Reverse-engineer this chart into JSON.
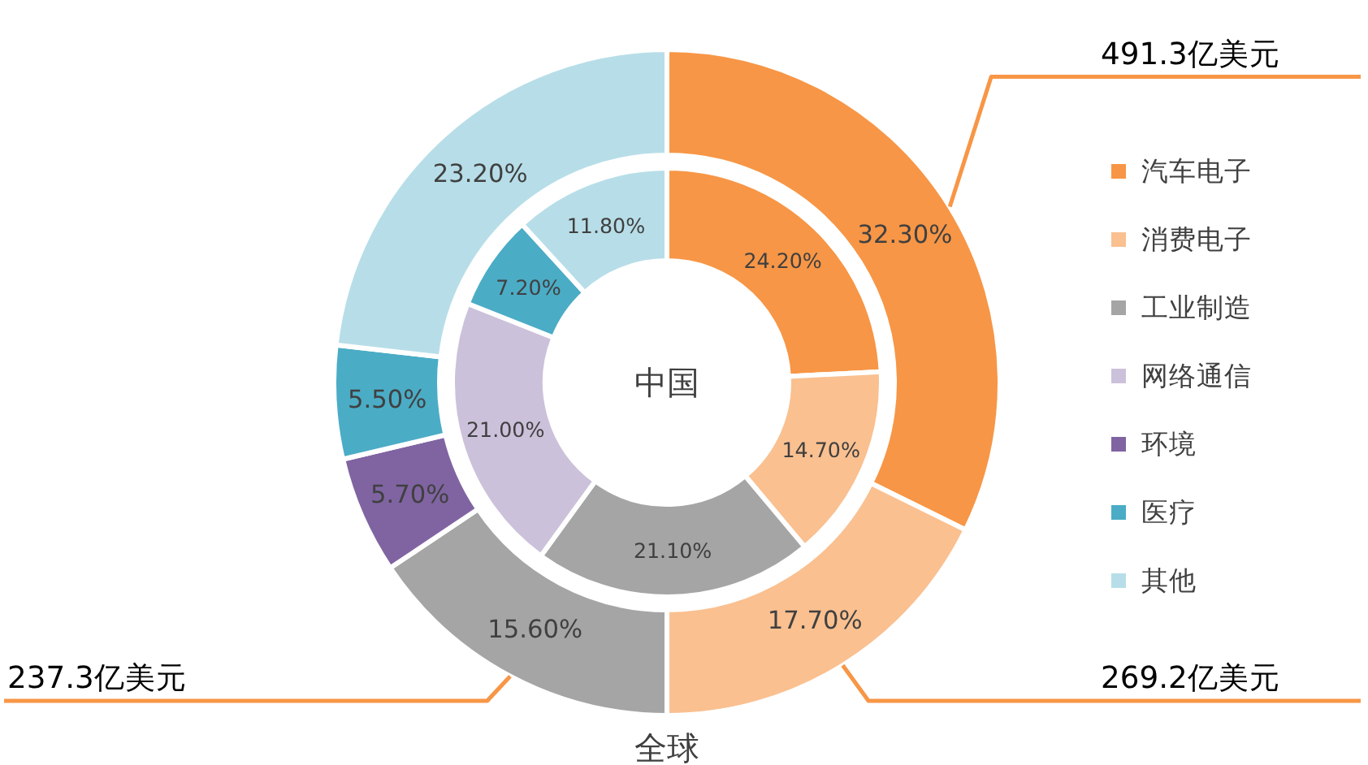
{
  "chart_data": {
    "type": "donut",
    "categories": [
      "汽车电子",
      "消费电子",
      "工业制造",
      "网络通信",
      "环境",
      "医疗",
      "其他"
    ],
    "colors": [
      "#f79646",
      "#fac090",
      "#a5a5a5",
      "#ccc1da",
      "#8064a2",
      "#4bacc6",
      "#b7dee8"
    ],
    "series": [
      {
        "name": "中国",
        "values": [
          24.2,
          14.7,
          21.1,
          21.0,
          null,
          7.2,
          11.8
        ],
        "value_labels": [
          "24.20%",
          "14.70%",
          "21.10%",
          "21.00%",
          null,
          "7.20%",
          "11.80%"
        ]
      },
      {
        "name": "全球",
        "values": [
          32.3,
          17.7,
          15.6,
          null,
          5.7,
          5.5,
          23.2
        ],
        "value_labels": [
          "32.30%",
          "17.70%",
          "15.60%",
          null,
          "5.70%",
          "5.50%",
          "23.20%"
        ]
      }
    ],
    "annotations": [
      {
        "text": "491.3亿美元",
        "x": "汽车电子"
      },
      {
        "text": "269.2亿美元",
        "x": "消费电子"
      },
      {
        "text": "237.3亿美元",
        "x": "工业制造"
      }
    ],
    "legend": "right"
  }
}
